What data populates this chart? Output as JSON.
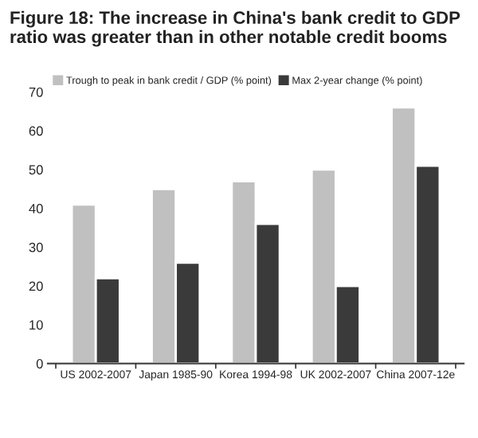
{
  "chart_data": {
    "type": "bar",
    "title": "Figure 18: The increase in China's bank credit to GDP ratio was greater than in other notable credit booms",
    "categories": [
      "US 2002-2007",
      "Japan 1985-90",
      "Korea 1994-98",
      "UK 2002-2007",
      "China 2007-12e"
    ],
    "series": [
      {
        "name": "Trough to peak in bank credit / GDP (% point)",
        "color": "#c0c0c0",
        "values": [
          41,
          45,
          47,
          50,
          66
        ]
      },
      {
        "name": "Max 2-year change (% point)",
        "color": "#3a3a3a",
        "values": [
          22,
          26,
          36,
          20,
          51
        ]
      }
    ],
    "ylim": [
      0,
      70
    ],
    "yticks": [
      0,
      10,
      20,
      30,
      40,
      50,
      60,
      70
    ],
    "grid": false,
    "legend": "top"
  }
}
